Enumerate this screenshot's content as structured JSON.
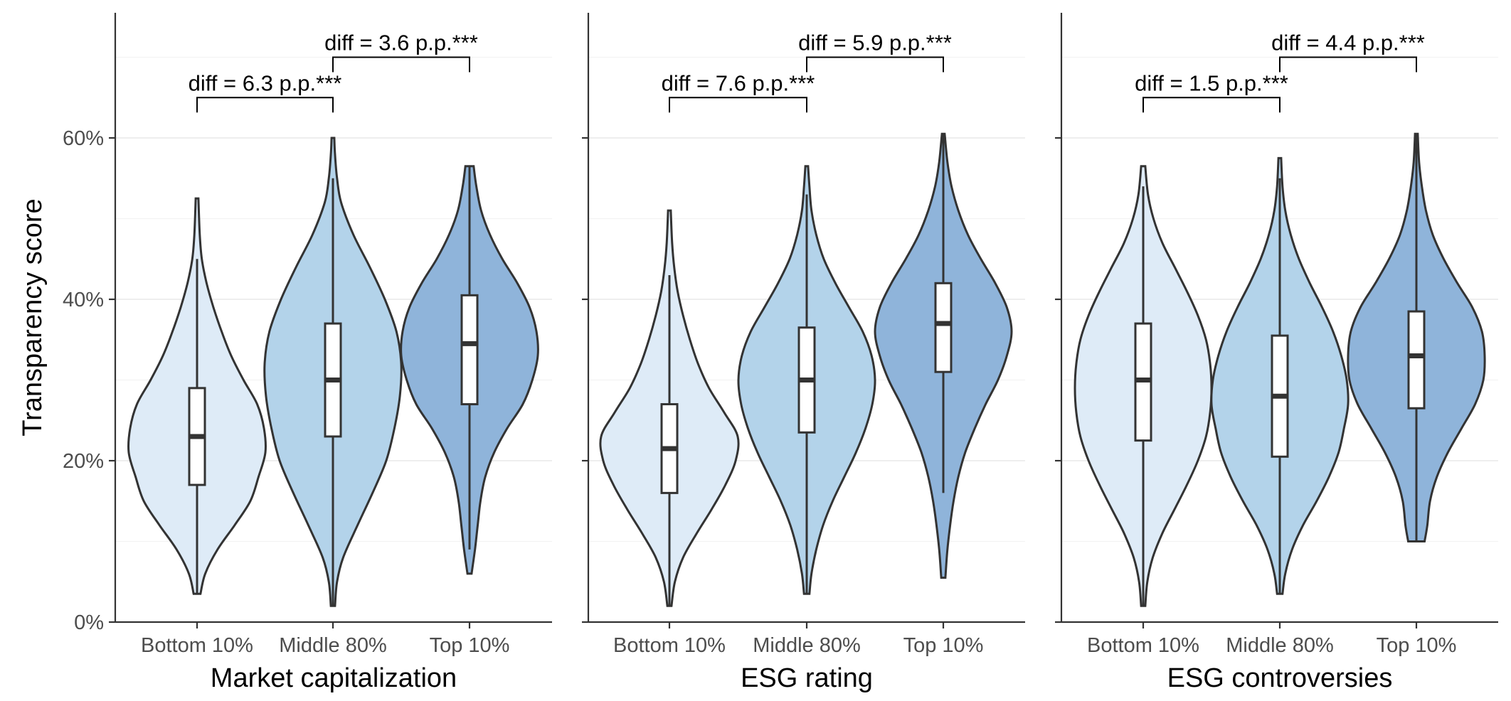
{
  "chart_data": {
    "type": "violin",
    "y_axis": {
      "title": "Transparency score",
      "ylim": [
        0,
        75
      ],
      "major_ticks": [
        0,
        20,
        40,
        60
      ],
      "tick_labels": [
        "0%",
        "20%",
        "40%",
        "60%"
      ],
      "minor_gridlines": [
        10,
        30,
        50,
        70
      ]
    },
    "categories": [
      "Bottom 10%",
      "Middle 80%",
      "Top 10%"
    ],
    "colors": [
      "#deebf7",
      "#b3d3ea",
      "#8fb4da"
    ],
    "panels": [
      {
        "xlabel": "Market capitalization",
        "groups": [
          {
            "category": "Bottom 10%",
            "min": 3.5,
            "max": 52.5,
            "q1": 17,
            "median": 23,
            "q3": 29,
            "whisker_low": 3.5,
            "whisker_high": 45,
            "density": [
              [
                3.5,
                0.05
              ],
              [
                6,
                0.12
              ],
              [
                9,
                0.3
              ],
              [
                12,
                0.55
              ],
              [
                15,
                0.78
              ],
              [
                18,
                0.9
              ],
              [
                21,
                1.0
              ],
              [
                24,
                0.98
              ],
              [
                27,
                0.88
              ],
              [
                30,
                0.68
              ],
              [
                33,
                0.5
              ],
              [
                36,
                0.36
              ],
              [
                39,
                0.24
              ],
              [
                42,
                0.14
              ],
              [
                45,
                0.07
              ],
              [
                48,
                0.04
              ],
              [
                52.5,
                0.02
              ]
            ]
          },
          {
            "category": "Middle 80%",
            "min": 2,
            "max": 60,
            "q1": 23,
            "median": 30,
            "q3": 37,
            "whisker_low": 2,
            "whisker_high": 55,
            "density": [
              [
                2,
                0.03
              ],
              [
                5,
                0.06
              ],
              [
                8,
                0.15
              ],
              [
                12,
                0.36
              ],
              [
                16,
                0.58
              ],
              [
                20,
                0.78
              ],
              [
                24,
                0.9
              ],
              [
                28,
                0.98
              ],
              [
                32,
                1.0
              ],
              [
                36,
                0.93
              ],
              [
                40,
                0.76
              ],
              [
                44,
                0.54
              ],
              [
                48,
                0.3
              ],
              [
                52,
                0.12
              ],
              [
                55,
                0.06
              ],
              [
                58,
                0.03
              ],
              [
                60,
                0.02
              ]
            ]
          },
          {
            "category": "Top 10%",
            "min": 6,
            "max": 56.5,
            "q1": 27,
            "median": 34.5,
            "q3": 40.5,
            "whisker_low": 9,
            "whisker_high": 56.5,
            "density": [
              [
                6,
                0.03
              ],
              [
                9,
                0.08
              ],
              [
                12,
                0.12
              ],
              [
                15,
                0.16
              ],
              [
                18,
                0.23
              ],
              [
                21,
                0.36
              ],
              [
                24,
                0.55
              ],
              [
                27,
                0.78
              ],
              [
                30,
                0.92
              ],
              [
                33,
                1.0
              ],
              [
                36,
                0.98
              ],
              [
                39,
                0.88
              ],
              [
                42,
                0.7
              ],
              [
                45,
                0.48
              ],
              [
                48,
                0.3
              ],
              [
                51,
                0.17
              ],
              [
                54,
                0.1
              ],
              [
                56.5,
                0.06
              ]
            ]
          }
        ],
        "brackets": [
          {
            "from": "Bottom 10%",
            "to": "Middle 80%",
            "y": 65,
            "label": "diff = 6.3 p.p.***"
          },
          {
            "from": "Middle 80%",
            "to": "Top 10%",
            "y": 70,
            "label": "diff = 3.6 p.p.***"
          }
        ]
      },
      {
        "xlabel": "ESG rating",
        "groups": [
          {
            "category": "Bottom 10%",
            "min": 2,
            "max": 51,
            "q1": 16,
            "median": 21.5,
            "q3": 27,
            "whisker_low": 2,
            "whisker_high": 43,
            "density": [
              [
                2,
                0.03
              ],
              [
                5,
                0.08
              ],
              [
                8,
                0.2
              ],
              [
                11,
                0.4
              ],
              [
                14,
                0.62
              ],
              [
                17,
                0.82
              ],
              [
                20,
                0.97
              ],
              [
                23,
                1.0
              ],
              [
                26,
                0.8
              ],
              [
                29,
                0.58
              ],
              [
                32,
                0.42
              ],
              [
                35,
                0.3
              ],
              [
                38,
                0.2
              ],
              [
                41,
                0.12
              ],
              [
                44,
                0.07
              ],
              [
                47,
                0.04
              ],
              [
                51,
                0.02
              ]
            ]
          },
          {
            "category": "Middle 80%",
            "min": 3.5,
            "max": 56.5,
            "q1": 23.5,
            "median": 30,
            "q3": 36.5,
            "whisker_low": 3.5,
            "whisker_high": 53,
            "density": [
              [
                3.5,
                0.04
              ],
              [
                6,
                0.07
              ],
              [
                9,
                0.14
              ],
              [
                12,
                0.24
              ],
              [
                15,
                0.38
              ],
              [
                18,
                0.55
              ],
              [
                21,
                0.72
              ],
              [
                24,
                0.86
              ],
              [
                27,
                0.96
              ],
              [
                30,
                1.0
              ],
              [
                33,
                0.95
              ],
              [
                36,
                0.82
              ],
              [
                39,
                0.62
              ],
              [
                42,
                0.42
              ],
              [
                45,
                0.25
              ],
              [
                48,
                0.14
              ],
              [
                51,
                0.07
              ],
              [
                54,
                0.04
              ],
              [
                56.5,
                0.02
              ]
            ]
          },
          {
            "category": "Top 10%",
            "min": 5.5,
            "max": 60.5,
            "q1": 31,
            "median": 37,
            "q3": 42,
            "whisker_low": 16,
            "whisker_high": 60.5,
            "density": [
              [
                5.5,
                0.03
              ],
              [
                9,
                0.06
              ],
              [
                12,
                0.1
              ],
              [
                15,
                0.15
              ],
              [
                18,
                0.22
              ],
              [
                21,
                0.32
              ],
              [
                24,
                0.46
              ],
              [
                27,
                0.62
              ],
              [
                30,
                0.8
              ],
              [
                33,
                0.93
              ],
              [
                36,
                1.0
              ],
              [
                39,
                0.93
              ],
              [
                42,
                0.76
              ],
              [
                45,
                0.55
              ],
              [
                48,
                0.36
              ],
              [
                51,
                0.22
              ],
              [
                54,
                0.12
              ],
              [
                57,
                0.06
              ],
              [
                60.5,
                0.02
              ]
            ]
          }
        ],
        "brackets": [
          {
            "from": "Bottom 10%",
            "to": "Middle 80%",
            "y": 65,
            "label": "diff = 7.6 p.p.***"
          },
          {
            "from": "Middle 80%",
            "to": "Top 10%",
            "y": 70,
            "label": "diff = 5.9 p.p.***"
          }
        ]
      },
      {
        "xlabel": "ESG controversies",
        "groups": [
          {
            "category": "Bottom 10%",
            "min": 2,
            "max": 56.5,
            "q1": 22.5,
            "median": 30,
            "q3": 37,
            "whisker_low": 2,
            "whisker_high": 54,
            "density": [
              [
                2,
                0.03
              ],
              [
                5,
                0.06
              ],
              [
                8,
                0.14
              ],
              [
                11,
                0.28
              ],
              [
                14,
                0.46
              ],
              [
                17,
                0.64
              ],
              [
                20,
                0.8
              ],
              [
                23,
                0.92
              ],
              [
                26,
                0.98
              ],
              [
                29,
                1.0
              ],
              [
                32,
                0.98
              ],
              [
                35,
                0.92
              ],
              [
                38,
                0.8
              ],
              [
                41,
                0.64
              ],
              [
                44,
                0.46
              ],
              [
                47,
                0.28
              ],
              [
                50,
                0.15
              ],
              [
                53,
                0.07
              ],
              [
                56.5,
                0.03
              ]
            ]
          },
          {
            "category": "Middle 80%",
            "min": 3.5,
            "max": 57.5,
            "q1": 20.5,
            "median": 28,
            "q3": 35.5,
            "whisker_low": 3.5,
            "whisker_high": 55,
            "density": [
              [
                3.5,
                0.04
              ],
              [
                6,
                0.08
              ],
              [
                9,
                0.18
              ],
              [
                12,
                0.34
              ],
              [
                15,
                0.54
              ],
              [
                18,
                0.72
              ],
              [
                21,
                0.86
              ],
              [
                24,
                0.94
              ],
              [
                27,
                1.0
              ],
              [
                30,
                0.98
              ],
              [
                33,
                0.9
              ],
              [
                36,
                0.78
              ],
              [
                39,
                0.62
              ],
              [
                42,
                0.44
              ],
              [
                45,
                0.28
              ],
              [
                48,
                0.16
              ],
              [
                51,
                0.08
              ],
              [
                54,
                0.04
              ],
              [
                57.5,
                0.02
              ]
            ]
          },
          {
            "category": "Top 10%",
            "min": 10,
            "max": 60.5,
            "q1": 26.5,
            "median": 33,
            "q3": 38.5,
            "whisker_low": 10,
            "whisker_high": 60.5,
            "density": [
              [
                10,
                0.12
              ],
              [
                12,
                0.16
              ],
              [
                15,
                0.2
              ],
              [
                18,
                0.3
              ],
              [
                21,
                0.46
              ],
              [
                24,
                0.66
              ],
              [
                27,
                0.86
              ],
              [
                30,
                0.98
              ],
              [
                33,
                1.0
              ],
              [
                36,
                0.96
              ],
              [
                39,
                0.82
              ],
              [
                42,
                0.6
              ],
              [
                45,
                0.4
              ],
              [
                48,
                0.24
              ],
              [
                51,
                0.14
              ],
              [
                54,
                0.08
              ],
              [
                57,
                0.04
              ],
              [
                60.5,
                0.02
              ]
            ]
          }
        ],
        "brackets": [
          {
            "from": "Bottom 10%",
            "to": "Middle 80%",
            "y": 65,
            "label": "diff = 1.5 p.p.***"
          },
          {
            "from": "Middle 80%",
            "to": "Top 10%",
            "y": 70,
            "label": "diff = 4.4 p.p.***"
          }
        ]
      }
    ]
  }
}
